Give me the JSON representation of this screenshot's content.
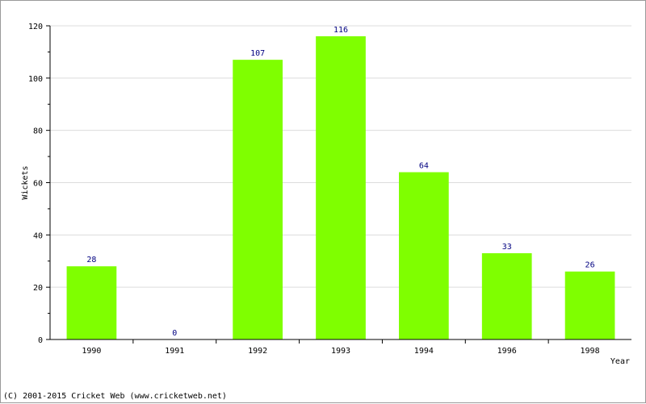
{
  "footer": {
    "copyright": "(C) 2001-2015 Cricket Web (www.cricketweb.net)"
  },
  "colors": {
    "bar": "#7fff00",
    "label": "#000080",
    "axis": "#000000",
    "grid": "#dcdcdc",
    "frame": "#9a9a9a"
  },
  "chart_data": {
    "type": "bar",
    "title": "",
    "xlabel": "Year",
    "ylabel": "Wickets",
    "categories": [
      "1990",
      "1991",
      "1992",
      "1993",
      "1994",
      "1996",
      "1998"
    ],
    "values": [
      28,
      0,
      107,
      116,
      64,
      33,
      26
    ],
    "ylim": [
      0,
      120
    ],
    "yticks": [
      0,
      20,
      40,
      60,
      80,
      100,
      120
    ],
    "grid": true,
    "data_labels": true,
    "legend": "none"
  }
}
